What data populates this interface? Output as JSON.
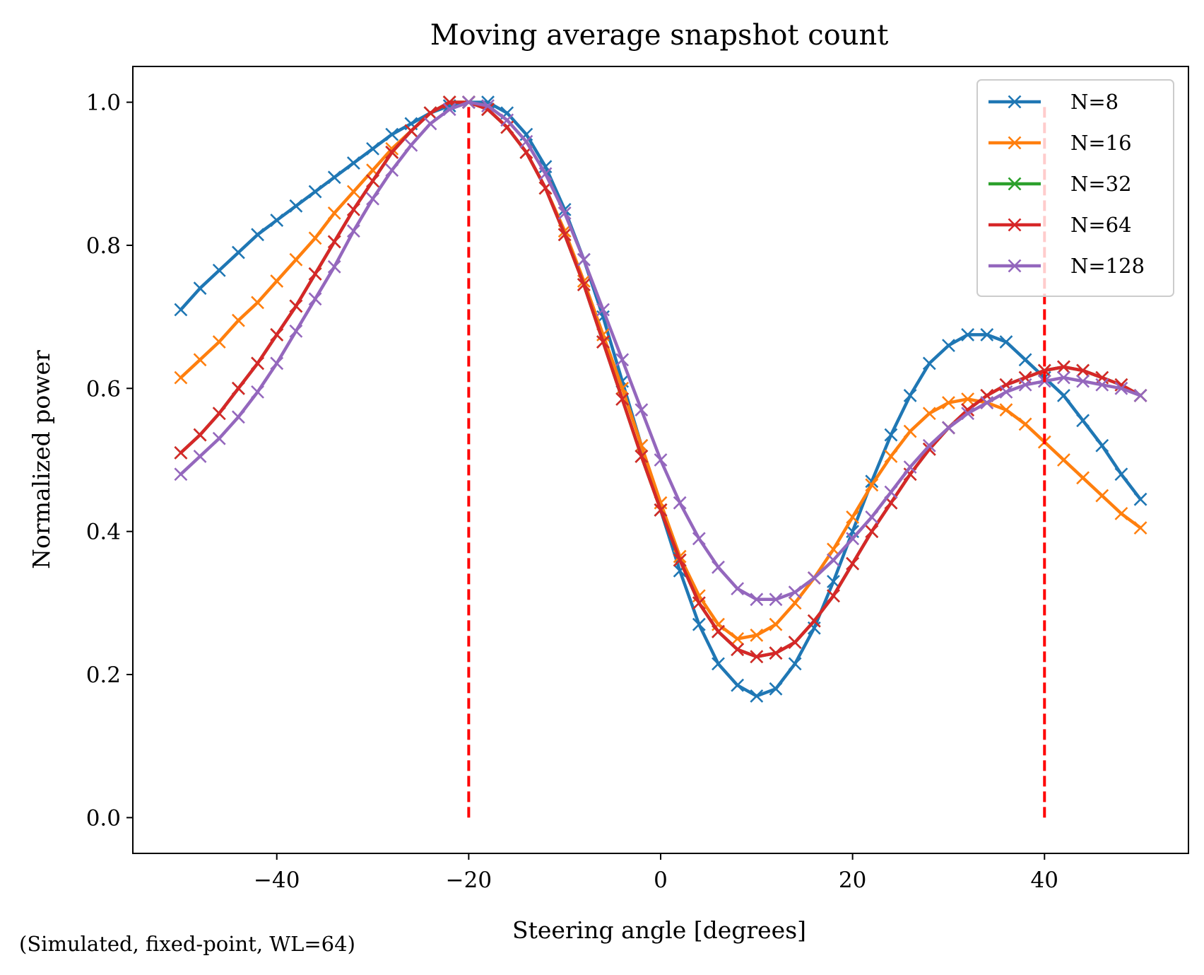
{
  "chart_data": {
    "type": "line",
    "title": "Moving average snapshot count",
    "xlabel": "Steering angle [degrees]",
    "ylabel": "Normalized power",
    "footnote": "(Simulated, fixed-point, WL=64)",
    "xlim": [
      -55,
      55
    ],
    "ylim": [
      -0.05,
      1.05
    ],
    "xticks": [
      -40,
      -20,
      0,
      20,
      40
    ],
    "xtick_labels": [
      "−40",
      "−20",
      "0",
      "20",
      "40"
    ],
    "yticks": [
      0.0,
      0.2,
      0.4,
      0.6,
      0.8,
      1.0
    ],
    "ytick_labels": [
      "0.0",
      "0.2",
      "0.4",
      "0.6",
      "0.8",
      "1.0"
    ],
    "grid": false,
    "legend_position": "top-right",
    "marker": "x",
    "vlines": [
      {
        "x": -20,
        "y_range": [
          0,
          1.0
        ],
        "color": "#ff0000",
        "style": "dashed"
      },
      {
        "x": 40,
        "y_range": [
          0,
          1.0
        ],
        "color": "#ff0000",
        "style": "dashed"
      }
    ],
    "x": [
      -50,
      -48,
      -46,
      -44,
      -42,
      -40,
      -38,
      -36,
      -34,
      -32,
      -30,
      -28,
      -26,
      -24,
      -22,
      -20,
      -18,
      -16,
      -14,
      -12,
      -10,
      -8,
      -6,
      -4,
      -2,
      0,
      2,
      4,
      6,
      8,
      10,
      12,
      14,
      16,
      18,
      20,
      22,
      24,
      26,
      28,
      30,
      32,
      34,
      36,
      38,
      40,
      42,
      44,
      46,
      48,
      50
    ],
    "series": [
      {
        "name": "N=8",
        "color": "#1f77b4",
        "values": [
          0.71,
          0.74,
          0.765,
          0.79,
          0.815,
          0.835,
          0.855,
          0.875,
          0.895,
          0.915,
          0.935,
          0.955,
          0.97,
          0.985,
          0.995,
          1.0,
          1.0,
          0.985,
          0.955,
          0.91,
          0.85,
          0.78,
          0.7,
          0.61,
          0.52,
          0.43,
          0.345,
          0.27,
          0.215,
          0.185,
          0.17,
          0.18,
          0.215,
          0.265,
          0.33,
          0.4,
          0.47,
          0.535,
          0.59,
          0.635,
          0.66,
          0.675,
          0.675,
          0.665,
          0.64,
          0.615,
          0.59,
          0.555,
          0.52,
          0.48,
          0.445
        ]
      },
      {
        "name": "N=16",
        "color": "#ff7f0e",
        "values": [
          0.615,
          0.64,
          0.665,
          0.695,
          0.72,
          0.75,
          0.78,
          0.81,
          0.845,
          0.875,
          0.905,
          0.935,
          0.96,
          0.985,
          1.0,
          1.0,
          0.99,
          0.965,
          0.93,
          0.88,
          0.82,
          0.75,
          0.675,
          0.6,
          0.52,
          0.44,
          0.365,
          0.31,
          0.27,
          0.25,
          0.255,
          0.27,
          0.3,
          0.335,
          0.375,
          0.42,
          0.465,
          0.505,
          0.54,
          0.565,
          0.58,
          0.585,
          0.58,
          0.57,
          0.55,
          0.525,
          0.5,
          0.475,
          0.45,
          0.425,
          0.405
        ]
      },
      {
        "name": "N=32",
        "color": "#2ca02c",
        "values": [
          0.51,
          0.535,
          0.565,
          0.6,
          0.635,
          0.675,
          0.715,
          0.76,
          0.805,
          0.85,
          0.89,
          0.93,
          0.96,
          0.985,
          1.0,
          1.0,
          0.99,
          0.965,
          0.93,
          0.88,
          0.815,
          0.745,
          0.665,
          0.585,
          0.505,
          0.43,
          0.36,
          0.3,
          0.26,
          0.235,
          0.225,
          0.23,
          0.245,
          0.275,
          0.31,
          0.355,
          0.4,
          0.44,
          0.48,
          0.515,
          0.545,
          0.57,
          0.59,
          0.605,
          0.615,
          0.625,
          0.63,
          0.625,
          0.615,
          0.605,
          0.59
        ]
      },
      {
        "name": "N=64",
        "color": "#d62728",
        "values": [
          0.51,
          0.535,
          0.565,
          0.6,
          0.635,
          0.675,
          0.715,
          0.76,
          0.805,
          0.85,
          0.89,
          0.93,
          0.96,
          0.985,
          1.0,
          1.0,
          0.99,
          0.965,
          0.93,
          0.88,
          0.815,
          0.745,
          0.665,
          0.585,
          0.505,
          0.43,
          0.36,
          0.3,
          0.26,
          0.235,
          0.225,
          0.23,
          0.245,
          0.275,
          0.31,
          0.355,
          0.4,
          0.44,
          0.48,
          0.515,
          0.545,
          0.57,
          0.59,
          0.605,
          0.615,
          0.625,
          0.63,
          0.625,
          0.615,
          0.605,
          0.59
        ]
      },
      {
        "name": "N=128",
        "color": "#9467bd",
        "values": [
          0.48,
          0.505,
          0.53,
          0.56,
          0.595,
          0.635,
          0.68,
          0.725,
          0.77,
          0.82,
          0.865,
          0.905,
          0.94,
          0.97,
          0.99,
          1.0,
          0.995,
          0.975,
          0.945,
          0.9,
          0.845,
          0.78,
          0.71,
          0.64,
          0.57,
          0.5,
          0.44,
          0.39,
          0.35,
          0.32,
          0.305,
          0.305,
          0.315,
          0.335,
          0.36,
          0.39,
          0.42,
          0.455,
          0.49,
          0.52,
          0.545,
          0.565,
          0.58,
          0.595,
          0.605,
          0.61,
          0.615,
          0.61,
          0.605,
          0.6,
          0.59
        ]
      }
    ]
  }
}
